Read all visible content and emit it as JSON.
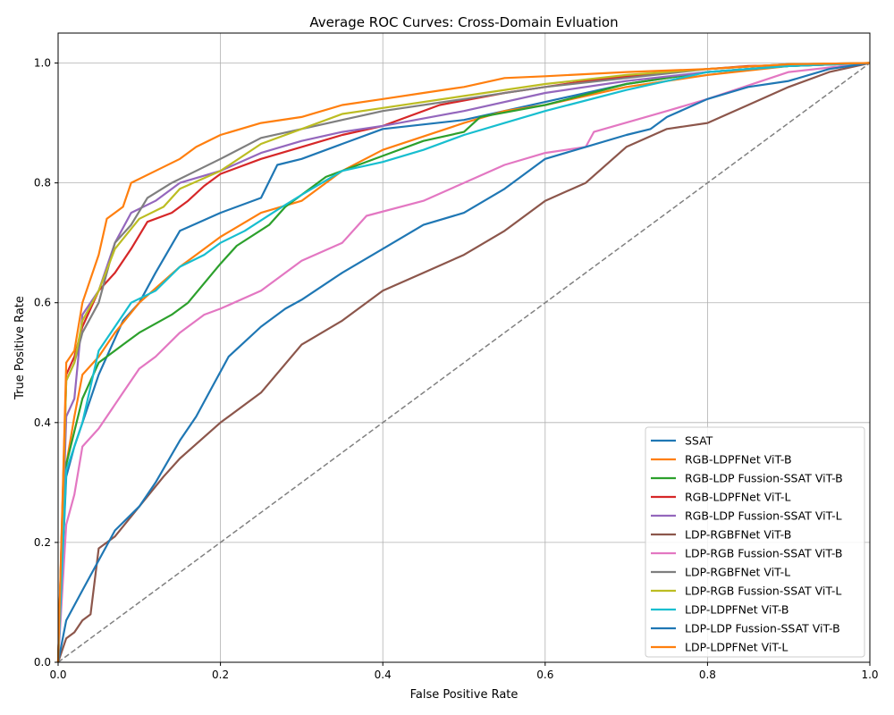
{
  "chart_data": {
    "type": "line",
    "title": "Average ROC Curves: Cross-Domain Evluation",
    "xlabel": "False Positive Rate",
    "ylabel": "True Positive Rate",
    "xlim": [
      0.0,
      1.0
    ],
    "ylim": [
      0.0,
      1.05
    ],
    "xticks": [
      "0.0",
      "0.2",
      "0.4",
      "0.6",
      "0.8",
      "1.0"
    ],
    "yticks": [
      "0.0",
      "0.2",
      "0.4",
      "0.6",
      "0.8",
      "1.0"
    ],
    "grid": true,
    "legend_position": "lower-right",
    "diagonal": {
      "x": [
        0,
        1
      ],
      "y": [
        0,
        1
      ],
      "color": "#808080",
      "style": "dashed"
    },
    "series": [
      {
        "name": "SSAT",
        "color": "#1f77b4",
        "x": [
          0,
          0.01,
          0.02,
          0.05,
          0.08,
          0.1,
          0.12,
          0.15,
          0.2,
          0.25,
          0.27,
          0.3,
          0.35,
          0.4,
          0.5,
          0.6,
          0.7,
          0.8,
          0.9,
          1.0
        ],
        "y": [
          0,
          0.31,
          0.36,
          0.48,
          0.57,
          0.6,
          0.65,
          0.72,
          0.75,
          0.775,
          0.83,
          0.84,
          0.865,
          0.89,
          0.905,
          0.935,
          0.965,
          0.985,
          0.995,
          1.0
        ]
      },
      {
        "name": "RGB-LDPFNet ViT-B",
        "color": "#ff7f0e",
        "x": [
          0,
          0.01,
          0.02,
          0.03,
          0.05,
          0.07,
          0.1,
          0.15,
          0.17,
          0.2,
          0.25,
          0.3,
          0.35,
          0.4,
          0.5,
          0.55,
          0.6,
          0.7,
          0.8,
          0.9,
          1.0
        ],
        "y": [
          0,
          0.33,
          0.41,
          0.48,
          0.51,
          0.55,
          0.6,
          0.66,
          0.68,
          0.71,
          0.75,
          0.77,
          0.82,
          0.855,
          0.9,
          0.92,
          0.93,
          0.96,
          0.98,
          0.995,
          1.0
        ]
      },
      {
        "name": "RGB-LDP Fussion-SSAT ViT-B",
        "color": "#2ca02c",
        "x": [
          0,
          0.01,
          0.03,
          0.05,
          0.08,
          0.1,
          0.14,
          0.16,
          0.2,
          0.22,
          0.26,
          0.28,
          0.33,
          0.4,
          0.45,
          0.5,
          0.52,
          0.6,
          0.7,
          0.8,
          0.9,
          1.0
        ],
        "y": [
          0,
          0.33,
          0.44,
          0.5,
          0.53,
          0.55,
          0.58,
          0.6,
          0.665,
          0.695,
          0.73,
          0.76,
          0.81,
          0.845,
          0.87,
          0.885,
          0.91,
          0.93,
          0.965,
          0.985,
          0.995,
          1.0
        ]
      },
      {
        "name": "RGB-LDPFNet ViT-L",
        "color": "#d62728",
        "x": [
          0,
          0.01,
          0.02,
          0.03,
          0.05,
          0.07,
          0.09,
          0.11,
          0.14,
          0.16,
          0.18,
          0.2,
          0.25,
          0.3,
          0.35,
          0.4,
          0.47,
          0.55,
          0.65,
          0.75,
          0.85,
          1.0
        ],
        "y": [
          0,
          0.48,
          0.51,
          0.56,
          0.62,
          0.65,
          0.69,
          0.735,
          0.75,
          0.77,
          0.795,
          0.815,
          0.84,
          0.86,
          0.88,
          0.895,
          0.93,
          0.95,
          0.97,
          0.985,
          0.995,
          1.0
        ]
      },
      {
        "name": "RGB-LDP Fussion-SSAT ViT-L",
        "color": "#9467bd",
        "x": [
          0,
          0.01,
          0.02,
          0.03,
          0.05,
          0.07,
          0.09,
          0.12,
          0.15,
          0.2,
          0.25,
          0.3,
          0.35,
          0.4,
          0.5,
          0.6,
          0.7,
          0.8,
          0.9,
          1.0
        ],
        "y": [
          0,
          0.41,
          0.44,
          0.58,
          0.62,
          0.7,
          0.75,
          0.77,
          0.8,
          0.82,
          0.85,
          0.87,
          0.885,
          0.895,
          0.92,
          0.95,
          0.97,
          0.985,
          0.995,
          1.0
        ]
      },
      {
        "name": "LDP-RGBFNet ViT-B",
        "color": "#8c564b",
        "x": [
          0,
          0.01,
          0.02,
          0.03,
          0.04,
          0.05,
          0.07,
          0.1,
          0.13,
          0.15,
          0.2,
          0.25,
          0.3,
          0.35,
          0.4,
          0.45,
          0.5,
          0.55,
          0.6,
          0.65,
          0.7,
          0.75,
          0.8,
          0.85,
          0.9,
          0.95,
          1.0
        ],
        "y": [
          0,
          0.04,
          0.05,
          0.07,
          0.08,
          0.19,
          0.21,
          0.26,
          0.31,
          0.34,
          0.4,
          0.45,
          0.53,
          0.57,
          0.62,
          0.65,
          0.68,
          0.72,
          0.77,
          0.8,
          0.86,
          0.89,
          0.9,
          0.93,
          0.96,
          0.985,
          1.0
        ]
      },
      {
        "name": "LDP-RGB Fussion-SSAT ViT-B",
        "color": "#e377c2",
        "x": [
          0,
          0.01,
          0.02,
          0.03,
          0.05,
          0.08,
          0.1,
          0.12,
          0.15,
          0.18,
          0.2,
          0.25,
          0.3,
          0.35,
          0.38,
          0.45,
          0.5,
          0.55,
          0.6,
          0.65,
          0.66,
          0.75,
          0.8,
          0.9,
          1.0
        ],
        "y": [
          0,
          0.23,
          0.28,
          0.36,
          0.39,
          0.45,
          0.49,
          0.51,
          0.55,
          0.58,
          0.59,
          0.62,
          0.67,
          0.7,
          0.745,
          0.77,
          0.8,
          0.83,
          0.85,
          0.86,
          0.885,
          0.92,
          0.94,
          0.985,
          1.0
        ]
      },
      {
        "name": "LDP-RGBFNet ViT-L",
        "color": "#7f7f7f",
        "x": [
          0,
          0.01,
          0.02,
          0.03,
          0.05,
          0.07,
          0.09,
          0.11,
          0.14,
          0.17,
          0.2,
          0.25,
          0.3,
          0.35,
          0.4,
          0.5,
          0.6,
          0.7,
          0.8,
          0.9,
          1.0
        ],
        "y": [
          0,
          0.47,
          0.5,
          0.55,
          0.6,
          0.7,
          0.73,
          0.775,
          0.8,
          0.82,
          0.84,
          0.875,
          0.89,
          0.905,
          0.92,
          0.94,
          0.96,
          0.975,
          0.99,
          0.998,
          1.0
        ]
      },
      {
        "name": "LDP-RGB Fussion-SSAT ViT-L",
        "color": "#bcbd22",
        "x": [
          0,
          0.01,
          0.02,
          0.03,
          0.05,
          0.07,
          0.1,
          0.13,
          0.15,
          0.2,
          0.25,
          0.3,
          0.35,
          0.4,
          0.5,
          0.6,
          0.7,
          0.8,
          0.9,
          1.0
        ],
        "y": [
          0,
          0.47,
          0.5,
          0.57,
          0.62,
          0.69,
          0.74,
          0.76,
          0.79,
          0.82,
          0.865,
          0.89,
          0.915,
          0.925,
          0.945,
          0.965,
          0.98,
          0.99,
          0.998,
          1.0
        ]
      },
      {
        "name": "LDP-LDPFNet ViT-B",
        "color": "#17becf",
        "x": [
          0,
          0.01,
          0.03,
          0.05,
          0.07,
          0.09,
          0.12,
          0.15,
          0.18,
          0.2,
          0.23,
          0.27,
          0.3,
          0.35,
          0.4,
          0.45,
          0.5,
          0.55,
          0.6,
          0.7,
          0.8,
          0.9,
          1.0
        ],
        "y": [
          0,
          0.32,
          0.4,
          0.52,
          0.56,
          0.6,
          0.62,
          0.66,
          0.68,
          0.7,
          0.72,
          0.755,
          0.78,
          0.82,
          0.835,
          0.855,
          0.88,
          0.9,
          0.92,
          0.955,
          0.985,
          0.995,
          1.0
        ]
      },
      {
        "name": "LDP-LDP Fussion-SSAT ViT-B",
        "color": "#1f77b4",
        "x": [
          0,
          0.01,
          0.03,
          0.05,
          0.07,
          0.1,
          0.12,
          0.15,
          0.17,
          0.19,
          0.21,
          0.25,
          0.28,
          0.3,
          0.35,
          0.4,
          0.45,
          0.5,
          0.55,
          0.6,
          0.65,
          0.7,
          0.73,
          0.75,
          0.8,
          0.85,
          0.9,
          0.95,
          1.0
        ],
        "y": [
          0,
          0.07,
          0.12,
          0.17,
          0.22,
          0.26,
          0.3,
          0.37,
          0.41,
          0.46,
          0.51,
          0.56,
          0.59,
          0.605,
          0.65,
          0.69,
          0.73,
          0.75,
          0.79,
          0.84,
          0.86,
          0.88,
          0.89,
          0.91,
          0.94,
          0.96,
          0.97,
          0.99,
          1.0
        ]
      },
      {
        "name": "LDP-LDPFNet ViT-L",
        "color": "#ff7f0e",
        "x": [
          0,
          0.01,
          0.02,
          0.03,
          0.05,
          0.06,
          0.08,
          0.09,
          0.12,
          0.15,
          0.17,
          0.2,
          0.25,
          0.3,
          0.35,
          0.4,
          0.45,
          0.5,
          0.55,
          0.6,
          0.7,
          0.8,
          0.9,
          1.0
        ],
        "y": [
          0,
          0.5,
          0.52,
          0.6,
          0.68,
          0.74,
          0.76,
          0.8,
          0.82,
          0.84,
          0.86,
          0.88,
          0.9,
          0.91,
          0.93,
          0.94,
          0.95,
          0.96,
          0.975,
          0.978,
          0.985,
          0.99,
          0.998,
          1.0
        ]
      }
    ]
  }
}
